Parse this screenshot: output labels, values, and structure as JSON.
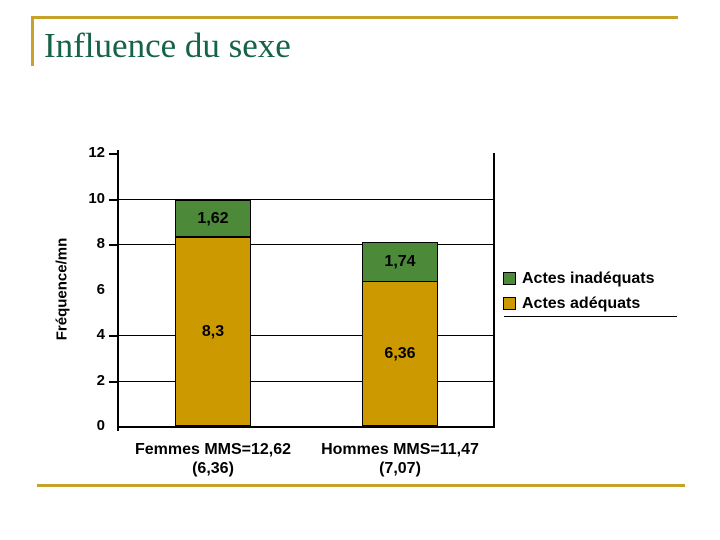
{
  "slide": {
    "title": "Influence du sexe",
    "colors": {
      "title_green": "#17634A",
      "accent_gold": "#C8A12B",
      "background": "#FFFFFF"
    }
  },
  "chart_data": {
    "type": "bar",
    "stacked": true,
    "title": "",
    "xlabel": "",
    "ylabel": "Fréquence/mn",
    "ylim": [
      0,
      12
    ],
    "yticks": [
      12,
      10,
      8,
      6,
      4,
      2,
      0
    ],
    "gridlines_at": [
      2,
      4,
      8,
      10
    ],
    "tick_marks_at": [
      2,
      4,
      8,
      10,
      12
    ],
    "grid_note": "horizontal gridlines only at 2, 4, 8, 10 (none at 6 or 12)",
    "legend_position": "right",
    "categories": [
      {
        "label": "Femmes MMS=12,62",
        "sublabel": "(6,36)"
      },
      {
        "label": "Hommes MMS=11,47",
        "sublabel": "(7,07)"
      }
    ],
    "series": [
      {
        "name": "Actes adéquats",
        "key": "adequats",
        "color": "#CC9900",
        "values": [
          8.3,
          6.36
        ],
        "value_labels": [
          "8,3",
          "6,36"
        ]
      },
      {
        "name": "Actes inadéquats",
        "key": "inadequats",
        "color": "#4C8A3A",
        "values": [
          1.62,
          1.74
        ],
        "value_labels": [
          "1,62",
          "1,74"
        ]
      }
    ],
    "legend_items": [
      {
        "label": "Actes inadéquats",
        "key": "inadequats",
        "color": "#4C8A3A"
      },
      {
        "label": "Actes adéquats",
        "key": "adequats",
        "color": "#CC9900"
      }
    ]
  }
}
